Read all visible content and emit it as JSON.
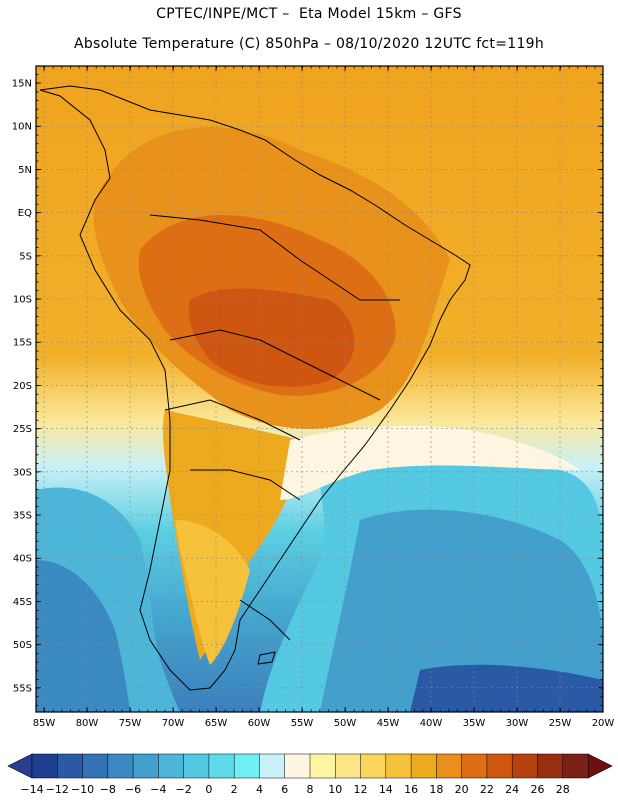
{
  "header": {
    "line1": "CPTEC/INPE/MCT –  Eta Model 15km – GFS",
    "line2": "Absolute Temperature (C) 850hPa – 08/10/2020 12UTC fct=119h"
  },
  "axes": {
    "lat_labels": [
      "15N",
      "10N",
      "5N",
      "EQ",
      "5S",
      "10S",
      "15S",
      "20S",
      "25S",
      "30S",
      "35S",
      "40S",
      "45S",
      "50S",
      "55S"
    ],
    "lon_labels": [
      "85W",
      "80W",
      "75W",
      "70W",
      "65W",
      "60W",
      "55W",
      "50W",
      "45W",
      "40W",
      "35W",
      "30W",
      "25W",
      "20W"
    ]
  },
  "colorbar": {
    "labels": [
      "-14",
      "-12",
      "-10",
      "-8",
      "-6",
      "-4",
      "-2",
      "0",
      "2",
      "4",
      "6",
      "8",
      "10",
      "12",
      "14",
      "16",
      "18",
      "20",
      "22",
      "24",
      "26",
      "28"
    ],
    "colors": [
      "#1f3f93",
      "#2a5aa5",
      "#3373b5",
      "#3a8ac1",
      "#43a0cc",
      "#4db6d8",
      "#55c8e2",
      "#5ddbea",
      "#6ef0f5",
      "#c8f2f8",
      "#fef6e0",
      "#fef4a3",
      "#fde68a",
      "#fbd65c",
      "#f6c23a",
      "#eeaa1f",
      "#e8901a",
      "#de6d13",
      "#d05710",
      "#b8420d",
      "#973010",
      "#7a2016"
    ],
    "under_color": "#2a3e8e",
    "over_color": "#6e1010"
  }
}
